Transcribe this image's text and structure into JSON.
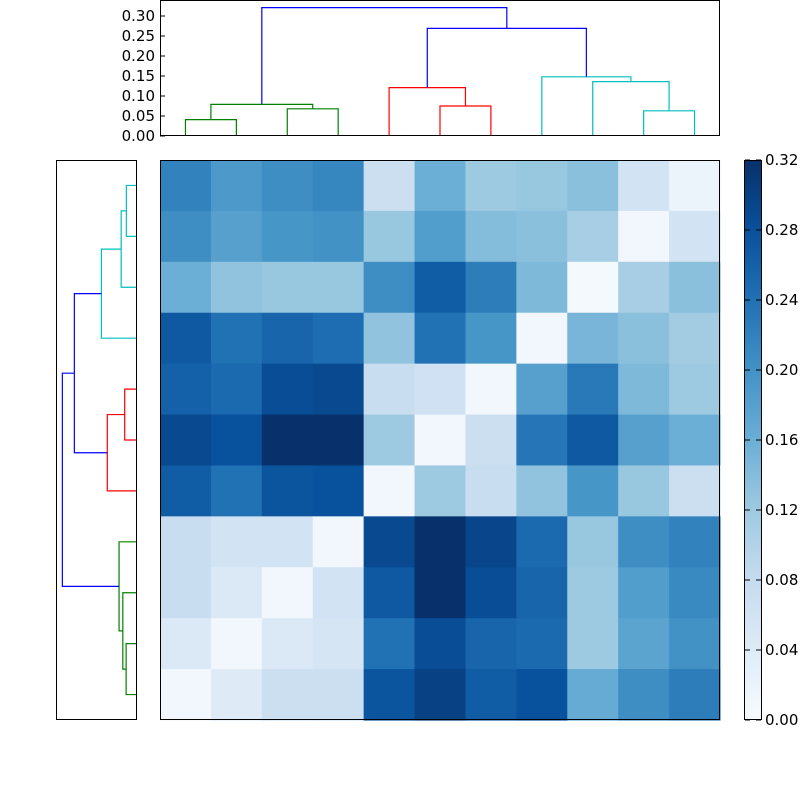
{
  "chart_data": [
    {
      "type": "heatmap",
      "rows": 11,
      "cols": 11,
      "values": [
        [
          0.22,
          0.19,
          0.205,
          0.215,
          0.07,
          0.16,
          0.12,
          0.125,
          0.135,
          0.06,
          0.02
        ],
        [
          0.205,
          0.18,
          0.195,
          0.2,
          0.125,
          0.185,
          0.14,
          0.135,
          0.11,
          0.01,
          0.06
        ],
        [
          0.16,
          0.13,
          0.125,
          0.125,
          0.205,
          0.265,
          0.225,
          0.145,
          0.005,
          0.11,
          0.135
        ],
        [
          0.27,
          0.24,
          0.255,
          0.245,
          0.13,
          0.24,
          0.195,
          0.01,
          0.15,
          0.135,
          0.115
        ],
        [
          0.26,
          0.25,
          0.285,
          0.29,
          0.075,
          0.065,
          0.01,
          0.18,
          0.23,
          0.145,
          0.12
        ],
        [
          0.29,
          0.28,
          0.32,
          0.32,
          0.12,
          0.01,
          0.07,
          0.235,
          0.27,
          0.18,
          0.16
        ],
        [
          0.265,
          0.24,
          0.275,
          0.28,
          0.01,
          0.12,
          0.075,
          0.13,
          0.195,
          0.125,
          0.07
        ],
        [
          0.075,
          0.06,
          0.06,
          0.01,
          0.29,
          0.32,
          0.295,
          0.25,
          0.125,
          0.205,
          0.22
        ],
        [
          0.075,
          0.045,
          0.01,
          0.06,
          0.27,
          0.32,
          0.285,
          0.255,
          0.12,
          0.185,
          0.21
        ],
        [
          0.045,
          0.01,
          0.045,
          0.055,
          0.24,
          0.285,
          0.255,
          0.25,
          0.12,
          0.175,
          0.2
        ],
        [
          0.01,
          0.04,
          0.07,
          0.07,
          0.275,
          0.3,
          0.265,
          0.28,
          0.165,
          0.205,
          0.225
        ]
      ]
    },
    {
      "type": "dendrogram",
      "orientation": "top",
      "ylim": [
        0,
        0.34
      ],
      "yticks": [
        "0.00",
        "0.05",
        "0.10",
        "0.15",
        "0.20",
        "0.25",
        "0.30"
      ],
      "ytick_values": [
        0,
        0.05,
        0.1,
        0.15,
        0.2,
        0.25,
        0.3
      ],
      "links": [
        {
          "x1": 0.5,
          "y1": 0,
          "x2": 1.5,
          "y2": 0,
          "h": 0.041,
          "color": "#008000"
        },
        {
          "x1": 2.5,
          "y1": 0,
          "x2": 3.5,
          "y2": 0,
          "h": 0.068,
          "color": "#008000"
        },
        {
          "x1": 1.0,
          "y1": 0.041,
          "x2": 3.0,
          "y2": 0.068,
          "h": 0.079,
          "color": "#008000"
        },
        {
          "x1": 5.5,
          "y1": 0,
          "x2": 6.5,
          "y2": 0,
          "h": 0.075,
          "color": "#ff0000"
        },
        {
          "x1": 4.5,
          "y1": 0,
          "x2": 6.0,
          "y2": 0.075,
          "h": 0.121,
          "color": "#ff0000"
        },
        {
          "x1": 9.5,
          "y1": 0,
          "x2": 10.5,
          "y2": 0,
          "h": 0.063,
          "color": "#00bfbf"
        },
        {
          "x1": 8.5,
          "y1": 0,
          "x2": 10.0,
          "y2": 0.063,
          "h": 0.136,
          "color": "#00bfbf"
        },
        {
          "x1": 7.5,
          "y1": 0,
          "x2": 9.25,
          "y2": 0.136,
          "h": 0.148,
          "color": "#00bfbf"
        },
        {
          "x1": 5.25,
          "y1": 0.121,
          "x2": 8.375,
          "y2": 0.148,
          "h": 0.269,
          "color": "#0000ff"
        },
        {
          "x1": 2.0,
          "y1": 0.079,
          "x2": 6.8125,
          "y2": 0.269,
          "h": 0.321,
          "color": "#0000ff"
        }
      ]
    },
    {
      "type": "dendrogram",
      "orientation": "left",
      "xlim": [
        0,
        0.34
      ],
      "links": [
        {
          "x1": 0,
          "y1": 0.5,
          "x2": 0,
          "y2": 1.5,
          "h": 0.041,
          "color": "#00bfbf"
        },
        {
          "x1": 0,
          "y1": 2.5,
          "x2": 0.041,
          "y2": 1.0,
          "h": 0.063,
          "color": "#00bfbf"
        },
        {
          "x1": 0,
          "y1": 3.5,
          "x2": 0.063,
          "y2": 1.75,
          "h": 0.147,
          "color": "#00bfbf"
        },
        {
          "x1": 0,
          "y1": 4.5,
          "x2": 0,
          "y2": 5.5,
          "h": 0.048,
          "color": "#ff0000"
        },
        {
          "x1": 0,
          "y1": 6.5,
          "x2": 0.048,
          "y2": 5.0,
          "h": 0.122,
          "color": "#ff0000"
        },
        {
          "x1": 0.147,
          "y1": 2.625,
          "x2": 0.122,
          "y2": 5.75,
          "h": 0.262,
          "color": "#0000ff"
        },
        {
          "x1": 0,
          "y1": 9.5,
          "x2": 0,
          "y2": 10.5,
          "h": 0.042,
          "color": "#008000"
        },
        {
          "x1": 0,
          "y1": 8.5,
          "x2": 0.042,
          "y2": 10.0,
          "h": 0.056,
          "color": "#008000"
        },
        {
          "x1": 0,
          "y1": 7.5,
          "x2": 0.056,
          "y2": 9.25,
          "h": 0.072,
          "color": "#008000"
        },
        {
          "x1": 0.262,
          "y1": 4.1875,
          "x2": 0.072,
          "y2": 8.375,
          "h": 0.313,
          "color": "#0000ff"
        }
      ]
    },
    {
      "type": "colorbar",
      "colormap": "Blues",
      "vmin": 0,
      "vmax": 0.32,
      "ticks": [
        "0.00",
        "0.04",
        "0.08",
        "0.12",
        "0.16",
        "0.20",
        "0.24",
        "0.28",
        "0.32"
      ],
      "tick_values": [
        0,
        0.04,
        0.08,
        0.12,
        0.16,
        0.2,
        0.24,
        0.28,
        0.32
      ]
    }
  ]
}
